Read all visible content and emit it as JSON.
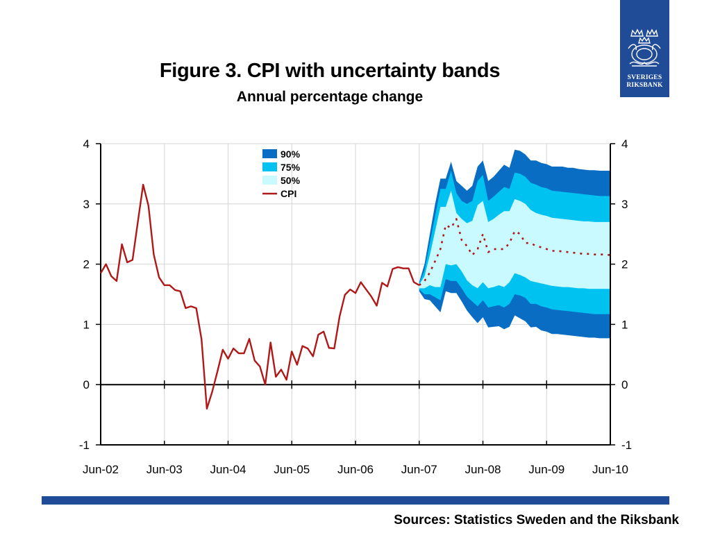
{
  "logo": {
    "line1": "SVERIGES",
    "line2": "RIKSBANK",
    "emblem": "riksbank-crown-emblem"
  },
  "source": "Sources: Statistics Sweden and the Riksbank",
  "colors": {
    "band90": "#0a6dc4",
    "band75": "#00c2f1",
    "band50": "#c8faff",
    "cpi": "#b01818",
    "brand": "#1f4b97"
  },
  "chart_data": {
    "type": "line",
    "title": "Figure 3. CPI with uncertainty bands",
    "subtitle": "Annual percentage change",
    "xlabel": "",
    "ylabel": "",
    "xlim": [
      "2002-06",
      "2010-06"
    ],
    "ylim": [
      -1,
      4
    ],
    "yticks": [
      "-1",
      "0",
      "1",
      "2",
      "3",
      "4"
    ],
    "xticks": [
      "Jun-02",
      "Jun-03",
      "Jun-04",
      "Jun-05",
      "Jun-06",
      "Jun-07",
      "Jun-08",
      "Jun-09",
      "Jun-10"
    ],
    "grid": true,
    "legend_position": "top-center",
    "legend": [
      "90%",
      "75%",
      "50%",
      "CPI"
    ],
    "series": [
      {
        "name": "CPI",
        "style": "solid",
        "x": [
          "2002-06",
          "2002-07",
          "2002-08",
          "2002-09",
          "2002-10",
          "2002-11",
          "2002-12",
          "2003-01",
          "2003-02",
          "2003-03",
          "2003-04",
          "2003-05",
          "2003-06",
          "2003-07",
          "2003-08",
          "2003-09",
          "2003-10",
          "2003-11",
          "2003-12",
          "2004-01",
          "2004-02",
          "2004-03",
          "2004-04",
          "2004-05",
          "2004-06",
          "2004-07",
          "2004-08",
          "2004-09",
          "2004-10",
          "2004-11",
          "2004-12",
          "2005-01",
          "2005-02",
          "2005-03",
          "2005-04",
          "2005-05",
          "2005-06",
          "2005-07",
          "2005-08",
          "2005-09",
          "2005-10",
          "2005-11",
          "2005-12",
          "2006-01",
          "2006-02",
          "2006-03",
          "2006-04",
          "2006-05",
          "2006-06",
          "2006-07",
          "2006-08",
          "2006-09",
          "2006-10",
          "2006-11",
          "2006-12",
          "2007-01",
          "2007-02",
          "2007-03",
          "2007-04",
          "2007-05",
          "2007-06"
        ],
        "values": [
          1.85,
          2.0,
          1.8,
          1.72,
          2.33,
          2.03,
          2.07,
          2.7,
          3.32,
          2.97,
          2.16,
          1.78,
          1.65,
          1.65,
          1.57,
          1.55,
          1.27,
          1.3,
          1.27,
          0.75,
          -0.4,
          -0.12,
          0.22,
          0.58,
          0.43,
          0.6,
          0.52,
          0.52,
          0.76,
          0.4,
          0.3,
          0.0,
          0.7,
          0.13,
          0.25,
          0.08,
          0.55,
          0.33,
          0.64,
          0.6,
          0.47,
          0.83,
          0.88,
          0.61,
          0.6,
          1.13,
          1.49,
          1.58,
          1.52,
          1.7,
          1.58,
          1.46,
          1.31,
          1.69,
          1.63,
          1.92,
          1.95,
          1.93,
          1.93,
          1.7,
          1.65
        ]
      },
      {
        "name": "",
        "style": "dotted",
        "x": [
          "2007-06",
          "2007-07",
          "2007-08",
          "2007-09",
          "2007-10",
          "2007-11",
          "2007-12",
          "2008-01",
          "2008-02",
          "2008-03",
          "2008-04",
          "2008-05",
          "2008-06",
          "2008-07",
          "2008-08",
          "2008-09",
          "2008-10",
          "2008-11",
          "2008-12",
          "2009-01",
          "2009-02",
          "2009-03",
          "2009-04",
          "2009-05",
          "2009-06",
          "2009-07",
          "2009-08",
          "2009-09",
          "2009-10",
          "2009-11",
          "2009-12",
          "2010-01",
          "2010-02",
          "2010-03",
          "2010-04",
          "2010-05",
          "2010-06"
        ],
        "values": [
          1.65,
          1.72,
          1.86,
          2.05,
          2.25,
          2.65,
          2.6,
          2.75,
          2.4,
          2.3,
          2.15,
          2.25,
          2.5,
          2.2,
          2.25,
          2.25,
          2.25,
          2.35,
          2.55,
          2.5,
          2.35,
          2.35,
          2.3,
          2.28,
          2.25,
          2.22,
          2.22,
          2.21,
          2.2,
          2.19,
          2.18,
          2.17,
          2.17,
          2.16,
          2.16,
          2.16,
          2.15
        ]
      }
    ],
    "bands": {
      "x": [
        "2007-06",
        "2007-07",
        "2007-08",
        "2007-09",
        "2007-10",
        "2007-11",
        "2007-12",
        "2008-01",
        "2008-02",
        "2008-03",
        "2008-04",
        "2008-05",
        "2008-06",
        "2008-07",
        "2008-08",
        "2008-09",
        "2008-10",
        "2008-11",
        "2008-12",
        "2009-01",
        "2009-02",
        "2009-03",
        "2009-04",
        "2009-05",
        "2009-06",
        "2009-07",
        "2009-08",
        "2009-09",
        "2009-10",
        "2009-11",
        "2009-12",
        "2010-01",
        "2010-02",
        "2010-03",
        "2010-04",
        "2010-05",
        "2010-06"
      ],
      "series": [
        {
          "name": "90%",
          "upper": [
            1.7,
            2.0,
            2.5,
            3.0,
            3.42,
            3.42,
            3.7,
            3.38,
            3.3,
            3.22,
            3.3,
            3.62,
            3.72,
            3.38,
            3.45,
            3.55,
            3.65,
            3.6,
            3.9,
            3.88,
            3.82,
            3.72,
            3.72,
            3.68,
            3.66,
            3.62,
            3.62,
            3.62,
            3.6,
            3.6,
            3.58,
            3.57,
            3.56,
            3.56,
            3.55,
            3.55,
            3.55
          ],
          "lower": [
            1.55,
            1.42,
            1.4,
            1.3,
            1.2,
            1.55,
            1.52,
            1.52,
            1.38,
            1.23,
            1.12,
            1.02,
            1.12,
            0.95,
            0.96,
            0.97,
            0.92,
            0.96,
            1.15,
            1.1,
            1.05,
            0.95,
            0.96,
            0.9,
            0.88,
            0.84,
            0.84,
            0.83,
            0.82,
            0.81,
            0.8,
            0.79,
            0.78,
            0.78,
            0.77,
            0.77,
            0.77
          ]
        },
        {
          "name": "75%",
          "upper": [
            1.68,
            1.9,
            2.35,
            2.8,
            3.25,
            3.25,
            3.55,
            3.18,
            3.05,
            3.0,
            3.05,
            3.38,
            3.48,
            3.05,
            3.12,
            3.2,
            3.28,
            3.25,
            3.52,
            3.5,
            3.45,
            3.35,
            3.32,
            3.28,
            3.26,
            3.22,
            3.21,
            3.2,
            3.19,
            3.18,
            3.17,
            3.16,
            3.15,
            3.14,
            3.13,
            3.13,
            3.13
          ],
          "lower": [
            1.58,
            1.5,
            1.5,
            1.45,
            1.4,
            1.75,
            1.72,
            1.72,
            1.6,
            1.46,
            1.38,
            1.3,
            1.4,
            1.28,
            1.3,
            1.32,
            1.28,
            1.34,
            1.5,
            1.48,
            1.44,
            1.34,
            1.34,
            1.3,
            1.28,
            1.25,
            1.24,
            1.23,
            1.22,
            1.21,
            1.2,
            1.19,
            1.18,
            1.17,
            1.17,
            1.17,
            1.17
          ]
        },
        {
          "name": "50%",
          "upper": [
            1.66,
            1.8,
            2.15,
            2.55,
            2.95,
            2.95,
            3.22,
            2.85,
            2.75,
            2.68,
            2.72,
            2.98,
            3.05,
            2.7,
            2.75,
            2.82,
            2.88,
            2.88,
            3.08,
            3.05,
            3.0,
            2.9,
            2.85,
            2.82,
            2.8,
            2.77,
            2.76,
            2.75,
            2.74,
            2.73,
            2.72,
            2.71,
            2.71,
            2.7,
            2.7,
            2.7,
            2.7
          ],
          "lower": [
            1.6,
            1.6,
            1.65,
            1.62,
            1.62,
            2.0,
            1.98,
            2.0,
            1.88,
            1.73,
            1.65,
            1.6,
            1.7,
            1.6,
            1.62,
            1.65,
            1.62,
            1.7,
            1.85,
            1.82,
            1.78,
            1.72,
            1.7,
            1.68,
            1.66,
            1.64,
            1.63,
            1.62,
            1.62,
            1.61,
            1.6,
            1.6,
            1.59,
            1.59,
            1.59,
            1.59,
            1.59
          ]
        }
      ]
    }
  }
}
